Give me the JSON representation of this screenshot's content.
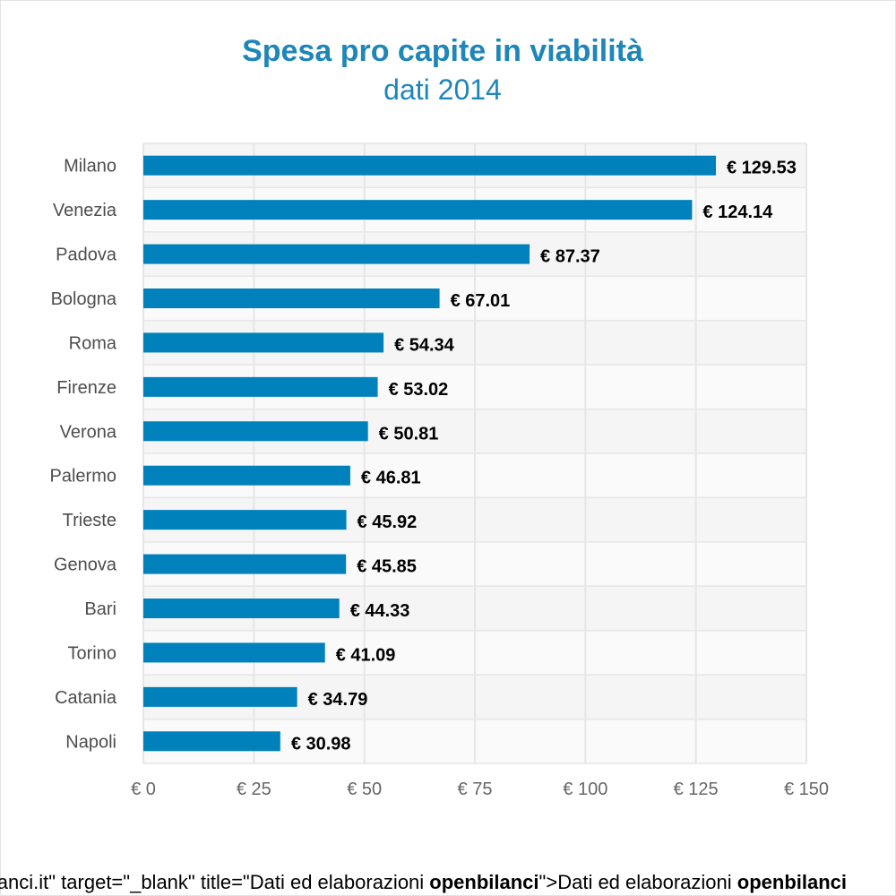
{
  "chart_data": {
    "type": "bar",
    "orientation": "horizontal",
    "title": "Spesa pro capite in viabilità",
    "subtitle": "dati 2014",
    "categories": [
      "Milano",
      "Venezia",
      "Padova",
      "Bologna",
      "Roma",
      "Firenze",
      "Verona",
      "Palermo",
      "Trieste",
      "Genova",
      "Bari",
      "Torino",
      "Catania",
      "Napoli"
    ],
    "values": [
      129.53,
      124.14,
      87.37,
      67.01,
      54.34,
      53.02,
      50.81,
      46.81,
      45.92,
      45.85,
      44.33,
      41.09,
      34.79,
      30.98
    ],
    "data_labels": [
      "€ 129.53",
      "€ 124.14",
      "€ 87.37",
      "€ 67.01",
      "€ 54.34",
      "€ 53.02",
      "€ 50.81",
      "€ 46.81",
      "€ 45.92",
      "€ 45.85",
      "€ 44.33",
      "€ 41.09",
      "€ 34.79",
      "€ 30.98"
    ],
    "xlim": [
      0,
      150
    ],
    "xticks": [
      0,
      25,
      50,
      75,
      100,
      125,
      150
    ],
    "xtick_labels": [
      "€ 0",
      "€ 25",
      "€ 50",
      "€ 75",
      "€ 100",
      "€ 125",
      "€ 150"
    ],
    "xlabel": "",
    "ylabel": "",
    "grid": true,
    "colors": {
      "bar": "#0081bb",
      "title": "#1f86b8",
      "grid": "#e6e6e6",
      "panel_a": "#f5f5f5",
      "panel_b": "#fafafa",
      "category_label": "#4d4d4d",
      "tick_label": "#666666",
      "data_label": "#000000"
    }
  },
  "footer": {
    "part1": "ilanci.it\" target=\"_blank\" title=\"Dati ed elaborazioni ",
    "bold1": "openbilanci",
    "part2": "\">Dati ed elaborazioni ",
    "bold2": "openbilanci"
  }
}
